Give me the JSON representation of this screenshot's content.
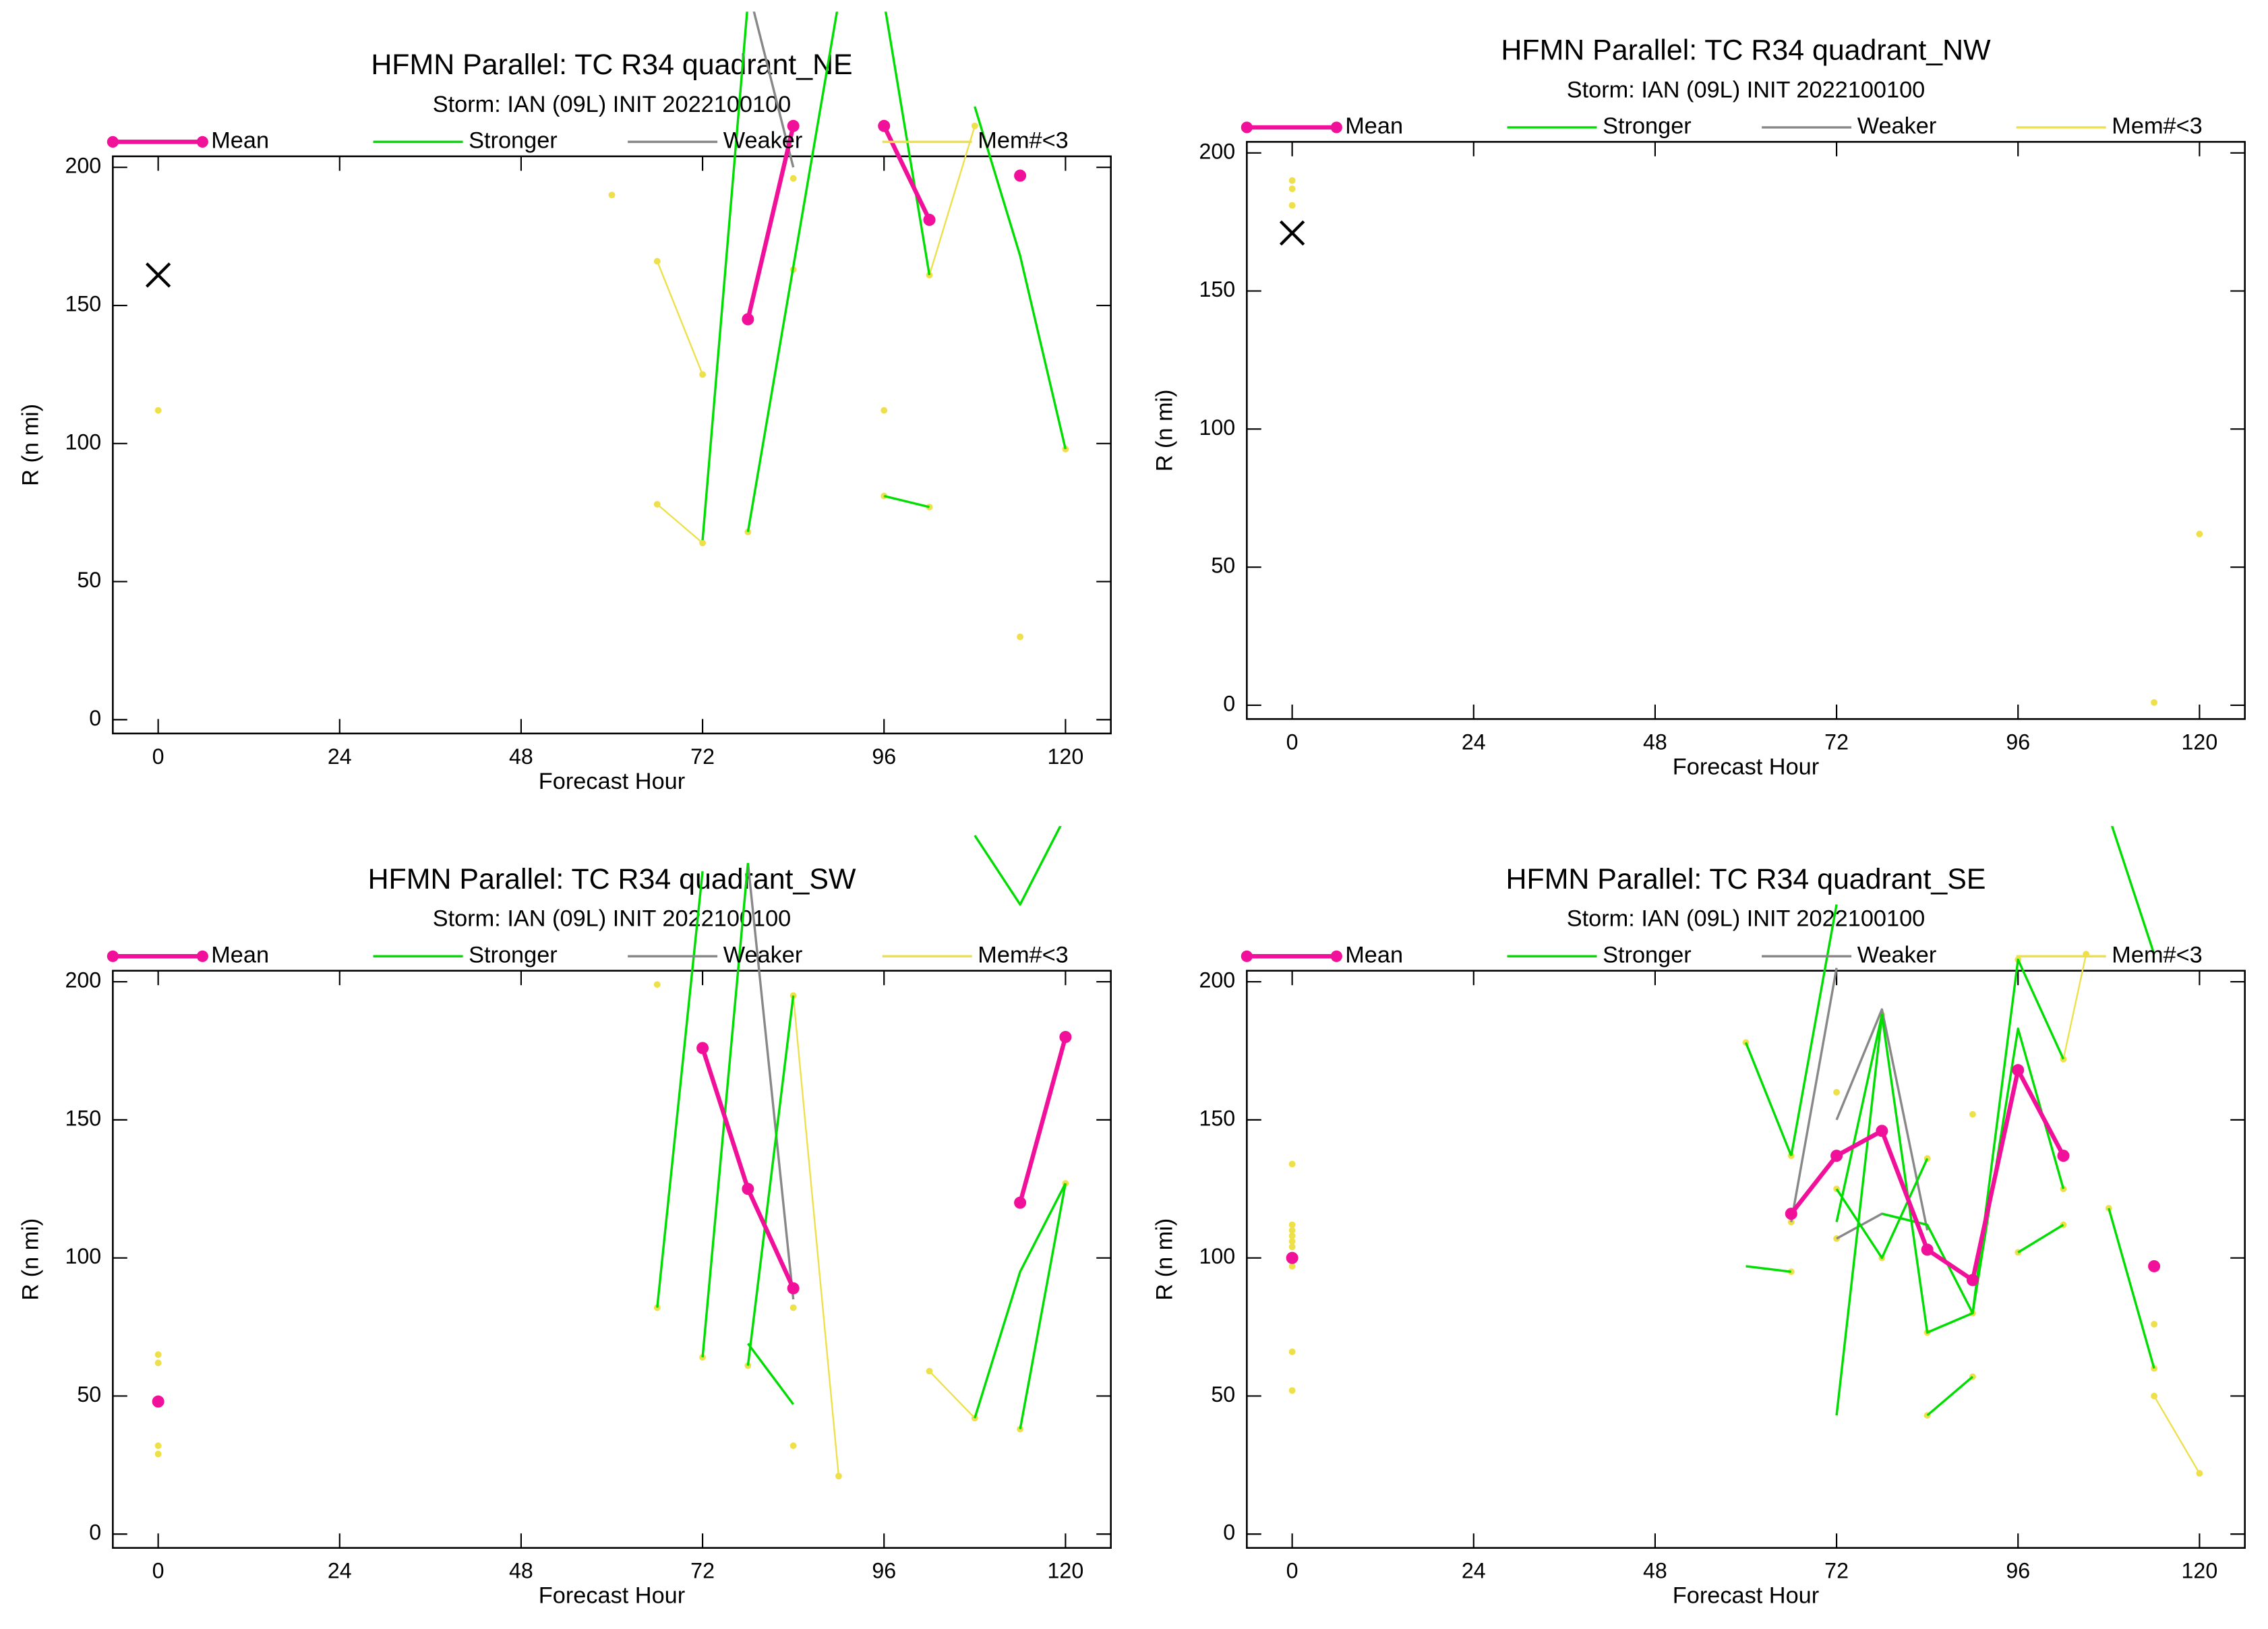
{
  "chart_data": [
    {
      "type": "line",
      "title": "HFMN Parallel: TC  R34 quadrant_NE",
      "subtitle": "Storm: IAN (09L) INIT 2022100100",
      "xlabel": "Forecast Hour",
      "ylabel": "R (n mi)",
      "xlim": [
        -6,
        126
      ],
      "xticks": [
        0,
        24,
        48,
        72,
        96,
        120
      ],
      "ylim": [
        -5,
        204
      ],
      "yticks": [
        0,
        50,
        100,
        150,
        200
      ],
      "obs": {
        "x": 0,
        "value": 161
      },
      "series": [
        {
          "name": "Mean",
          "color": "#f0109a",
          "x": [
            78,
            84,
            null,
            96,
            102,
            null,
            114
          ],
          "values": [
            145,
            215,
            null,
            215,
            181,
            null,
            197
          ]
        },
        {
          "name": "Stronger",
          "color": "#00dd00",
          "x": [
            72,
            78,
            null,
            78,
            90,
            null,
            96,
            102,
            null,
            96,
            102,
            null,
            108,
            114,
            120
          ],
          "values": [
            65,
            260,
            null,
            68,
            260,
            null,
            81,
            77,
            null,
            260,
            161,
            null,
            222,
            168,
            98
          ]
        },
        {
          "name": "Weaker",
          "color": "#888888",
          "x": [
            78,
            84
          ],
          "values": [
            265,
            200
          ]
        },
        {
          "name": "Mem#<3",
          "color": "#ede04a",
          "x": [
            0,
            null,
            60,
            null,
            66,
            72,
            null,
            66,
            72,
            null,
            78,
            null,
            84,
            null,
            84,
            null,
            96,
            null,
            96,
            102,
            null,
            102,
            108,
            null,
            114,
            null,
            120
          ],
          "values": [
            112,
            null,
            190,
            null,
            166,
            125,
            null,
            78,
            64,
            null,
            68,
            null,
            163,
            null,
            196,
            null,
            112,
            null,
            81,
            77,
            null,
            161,
            215,
            null,
            30,
            null,
            98
          ]
        }
      ]
    },
    {
      "type": "line",
      "title": "HFMN Parallel: TC  R34 quadrant_NW",
      "subtitle": "Storm: IAN (09L) INIT 2022100100",
      "xlabel": "Forecast Hour",
      "ylabel": "R (n mi)",
      "xlim": [
        -6,
        126
      ],
      "xticks": [
        0,
        24,
        48,
        72,
        96,
        120
      ],
      "ylim": [
        -5,
        204
      ],
      "yticks": [
        0,
        50,
        100,
        150,
        200
      ],
      "obs": {
        "x": 0,
        "value": 171
      },
      "series": [
        {
          "name": "Mean",
          "color": "#f0109a",
          "x": [],
          "values": []
        },
        {
          "name": "Stronger",
          "color": "#00dd00",
          "x": [],
          "values": []
        },
        {
          "name": "Weaker",
          "color": "#888888",
          "x": [],
          "values": []
        },
        {
          "name": "Mem#<3",
          "color": "#ede04a",
          "x": [
            0,
            null,
            0,
            null,
            0,
            null,
            114,
            null,
            120
          ],
          "values": [
            190,
            null,
            187,
            null,
            181,
            null,
            1,
            null,
            62
          ]
        }
      ]
    },
    {
      "type": "line",
      "title": "HFMN Parallel: TC  R34 quadrant_SW",
      "subtitle": "Storm: IAN (09L) INIT 2022100100",
      "xlabel": "Forecast Hour",
      "ylabel": "R (n mi)",
      "xlim": [
        -6,
        126
      ],
      "xticks": [
        0,
        24,
        48,
        72,
        96,
        120
      ],
      "ylim": [
        -5,
        204
      ],
      "yticks": [
        0,
        50,
        100,
        150,
        200
      ],
      "series": [
        {
          "name": "Mean",
          "color": "#f0109a",
          "x": [
            0,
            null,
            72,
            78,
            84,
            null,
            114,
            120
          ],
          "values": [
            48,
            null,
            176,
            125,
            89,
            null,
            120,
            180
          ]
        },
        {
          "name": "Stronger",
          "color": "#00dd00",
          "x": [
            66,
            72,
            null,
            72,
            78,
            null,
            78,
            84,
            null,
            78,
            84,
            null,
            108,
            114,
            120,
            null,
            108,
            114,
            120,
            null,
            114,
            120
          ],
          "values": [
            82,
            240,
            null,
            64,
            243,
            null,
            69,
            47,
            null,
            61,
            195,
            null,
            253,
            228,
            260,
            null,
            42,
            95,
            127,
            null,
            38,
            127
          ]
        },
        {
          "name": "Weaker",
          "color": "#888888",
          "x": [
            78,
            84
          ],
          "values": [
            243,
            85
          ]
        },
        {
          "name": "Mem#<3",
          "color": "#ede04a",
          "x": [
            0,
            null,
            0,
            null,
            0,
            null,
            0,
            null,
            66,
            null,
            66,
            null,
            72,
            null,
            78,
            null,
            84,
            null,
            84,
            90,
            null,
            84,
            null,
            102,
            108,
            null,
            114,
            null,
            120
          ],
          "values": [
            65,
            null,
            62,
            null,
            32,
            null,
            29,
            null,
            199,
            null,
            82,
            null,
            64,
            null,
            61,
            null,
            82,
            null,
            195,
            21,
            null,
            32,
            null,
            59,
            42,
            null,
            38,
            null,
            127
          ]
        }
      ]
    },
    {
      "type": "line",
      "title": "HFMN Parallel: TC  R34 quadrant_SE",
      "subtitle": "Storm: IAN (09L) INIT 2022100100",
      "xlabel": "Forecast Hour",
      "ylabel": "R (n mi)",
      "xlim": [
        -6,
        126
      ],
      "xticks": [
        0,
        24,
        48,
        72,
        96,
        120
      ],
      "ylim": [
        -5,
        204
      ],
      "yticks": [
        0,
        50,
        100,
        150,
        200
      ],
      "series": [
        {
          "name": "Mean",
          "color": "#f0109a",
          "x": [
            0,
            null,
            66,
            72,
            78,
            84,
            90,
            96,
            102,
            null,
            114
          ],
          "values": [
            100,
            null,
            116,
            137,
            146,
            103,
            92,
            168,
            137,
            null,
            97
          ]
        },
        {
          "name": "Stronger",
          "color": "#00dd00",
          "x": [
            60,
            66,
            null,
            60,
            66,
            null,
            66,
            72,
            null,
            72,
            78,
            null,
            72,
            78,
            84,
            90,
            96,
            102,
            null,
            72,
            78,
            84,
            null,
            78,
            84,
            90,
            96,
            102,
            null,
            84,
            90,
            null,
            96,
            102,
            null,
            108,
            114,
            null,
            108,
            114
          ],
          "values": [
            178,
            137,
            null,
            97,
            95,
            null,
            137,
            228,
            null,
            43,
            188,
            null,
            113,
            188,
            73,
            80,
            208,
            172,
            null,
            125,
            100,
            136,
            null,
            116,
            112,
            80,
            183,
            125,
            null,
            43,
            57,
            null,
            102,
            112,
            null,
            118,
            60,
            null,
            260,
            210
          ]
        },
        {
          "name": "Weaker",
          "color": "#888888",
          "x": [
            66,
            72,
            null,
            72,
            78,
            84,
            null,
            72,
            78,
            84
          ],
          "values": [
            113,
            205,
            null,
            107,
            116,
            112,
            null,
            150,
            190,
            110
          ]
        },
        {
          "name": "Mem#<3",
          "color": "#ede04a",
          "x": [
            0,
            null,
            0,
            null,
            0,
            null,
            0,
            null,
            0,
            null,
            0,
            null,
            0,
            null,
            0,
            null,
            0,
            null,
            60,
            null,
            66,
            null,
            66,
            null,
            66,
            null,
            72,
            null,
            72,
            null,
            72,
            null,
            78,
            null,
            78,
            null,
            84,
            null,
            84,
            null,
            84,
            null,
            90,
            null,
            90,
            null,
            90,
            null,
            96,
            null,
            96,
            null,
            102,
            105,
            null,
            102,
            null,
            102,
            null,
            108,
            null,
            114,
            null,
            114,
            null,
            114,
            120
          ],
          "values": [
            134,
            null,
            112,
            null,
            110,
            null,
            108,
            null,
            106,
            null,
            104,
            null,
            97,
            null,
            66,
            null,
            52,
            null,
            178,
            null,
            137,
            null,
            95,
            null,
            113,
            null,
            160,
            null,
            107,
            null,
            125,
            null,
            188,
            null,
            100,
            null,
            136,
            null,
            73,
            null,
            43,
            null,
            152,
            null,
            80,
            null,
            57,
            null,
            208,
            null,
            102,
            null,
            172,
            210,
            null,
            112,
            null,
            125,
            null,
            118,
            null,
            60,
            null,
            76,
            null,
            50,
            22
          ]
        }
      ]
    }
  ]
}
